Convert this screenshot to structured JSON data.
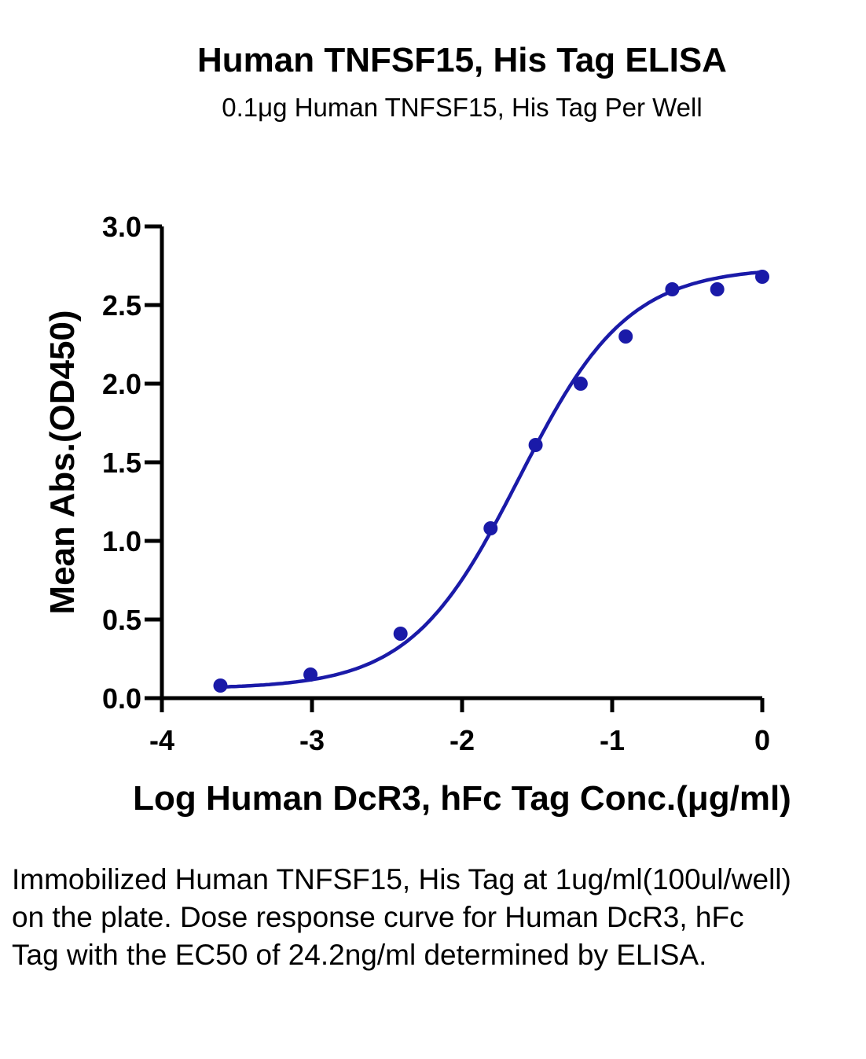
{
  "title": "Human TNFSF15, His Tag ELISA",
  "subtitle": "0.1μg Human TNFSF15, His Tag Per Well",
  "caption": "Immobilized Human TNFSF15, His Tag at 1ug/ml(100ul/well) on the plate. Dose response curve for Human DcR3, hFc Tag with the EC50 of 24.2ng/ml determined by ELISA.",
  "colors": {
    "series": "#1a1aa8",
    "axis": "#000000"
  },
  "chart_data": {
    "type": "scatter",
    "title": "Human TNFSF15, His Tag ELISA",
    "subtitle": "0.1μg Human TNFSF15, His Tag Per Well",
    "xlabel": "Log Human DcR3, hFc Tag Conc.(μg/ml)",
    "ylabel": "Mean Abs.(OD450)",
    "xlim": [
      -4,
      0
    ],
    "ylim": [
      0,
      3.0
    ],
    "xticks": [
      -4,
      -3,
      -2,
      -1,
      0
    ],
    "xtick_labels": [
      "-4",
      "-3",
      "-2",
      "-1",
      "0"
    ],
    "yticks": [
      0,
      0.5,
      1.0,
      1.5,
      2.0,
      2.5,
      3.0
    ],
    "ytick_labels": [
      "0.0",
      "0.5",
      "1.0",
      "1.5",
      "2.0",
      "2.5",
      "3.0"
    ],
    "grid": false,
    "series": [
      {
        "x": [
          -3.61,
          -3.01,
          -2.41,
          -1.81,
          -1.51,
          -1.21,
          -0.91,
          -0.6,
          -0.3,
          0.0
        ],
        "y": [
          0.08,
          0.15,
          0.41,
          1.08,
          1.61,
          2.0,
          2.3,
          2.6,
          2.6,
          2.68
        ]
      }
    ],
    "fit_curve": {
      "type": "4PL",
      "bottom": 0.06,
      "top": 2.74,
      "logEC50": -1.62,
      "hill": 1.2
    }
  }
}
